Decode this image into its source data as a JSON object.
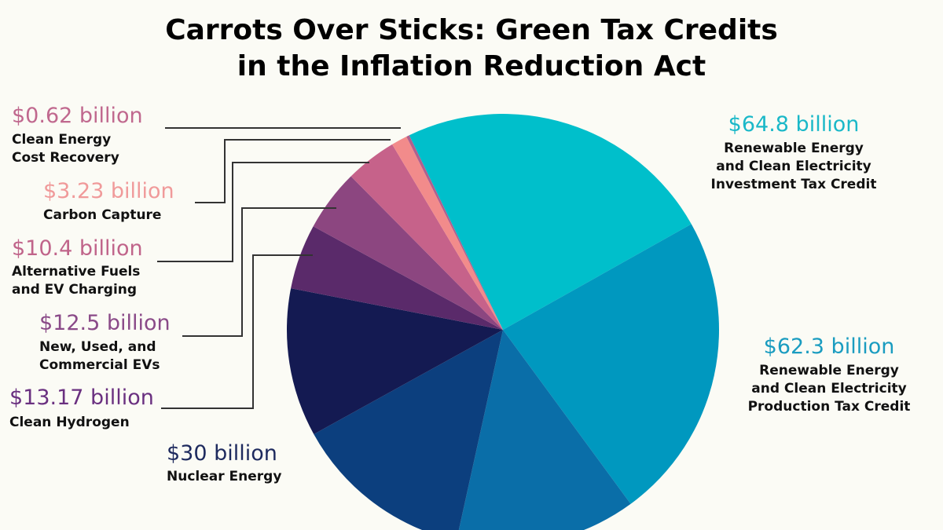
{
  "chart_data": {
    "type": "pie",
    "title": [
      "Carrots Over Sticks: Green Tax Credits",
      "in the Inflation Reduction Act"
    ],
    "categories": [
      [
        "Renewable Energy",
        "and Clean Electricity",
        "Investment Tax Credit"
      ],
      [
        "Renewable Energy",
        "and Clean Electricity",
        "Production Tax Credit"
      ],
      null,
      null,
      [
        "Nuclear Energy"
      ],
      [
        "Clean Hydrogen"
      ],
      [
        "New, Used, and",
        "Commercial EVs"
      ],
      [
        "Alternative Fuels",
        "and EV Charging"
      ],
      [
        "Carbon Capture"
      ],
      [
        "Clean Energy",
        "Cost Recovery"
      ]
    ],
    "values": [
      64.8,
      62.3,
      36.5,
      36.5,
      30,
      13.17,
      12.5,
      10.4,
      3.23,
      0.62
    ],
    "value_labels": [
      "$64.8 billion",
      "$62.3 billion",
      null,
      null,
      "$30 billion",
      "$13.17 billion",
      "$12.5 billion",
      "$10.4 billion",
      "$3.23 billion",
      "$0.62 billion"
    ],
    "colors": [
      "#00bfcb",
      "#0098bf",
      "#0a6ea8",
      "#0c3f7e",
      "#141a52",
      "#5a2a6a",
      "#8c4680",
      "#c6628a",
      "#f28b8b",
      "#b0608e"
    ],
    "label_colors": [
      "#1ab8c8",
      "#1a9cc0",
      null,
      null,
      "#1e2a5e",
      "#6a3080",
      "#8a4a88",
      "#c0648a",
      "#f09a9a",
      "#c0688e"
    ]
  }
}
